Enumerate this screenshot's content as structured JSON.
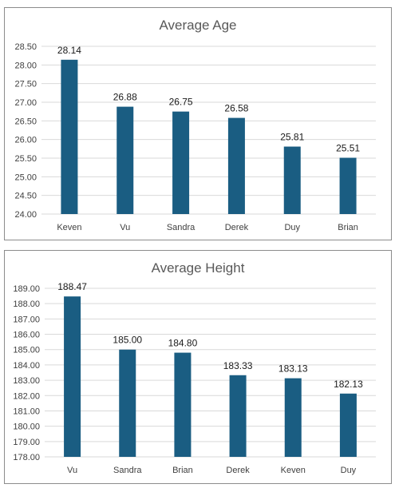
{
  "chart_data": [
    {
      "type": "bar",
      "title": "Average Age",
      "categories": [
        "Keven",
        "Vu",
        "Sandra",
        "Derek",
        "Duy",
        "Brian"
      ],
      "values": [
        28.14,
        26.88,
        26.75,
        26.58,
        25.81,
        25.51
      ],
      "value_labels": [
        "28.14",
        "26.88",
        "26.75",
        "26.58",
        "25.81",
        "25.51"
      ],
      "ylim": [
        24.0,
        28.5
      ],
      "yticks": [
        "24.00",
        "24.50",
        "25.00",
        "25.50",
        "26.00",
        "26.50",
        "27.00",
        "27.50",
        "28.00",
        "28.50"
      ],
      "xlabel": "",
      "ylabel": "",
      "grid": true,
      "legend": "none",
      "bar_color": "#1a5d82"
    },
    {
      "type": "bar",
      "title": "Average Height",
      "categories": [
        "Vu",
        "Sandra",
        "Brian",
        "Derek",
        "Keven",
        "Duy"
      ],
      "values": [
        188.47,
        185.0,
        184.8,
        183.33,
        183.13,
        182.13
      ],
      "value_labels": [
        "188.47",
        "185.00",
        "184.80",
        "183.33",
        "183.13",
        "182.13"
      ],
      "ylim": [
        178.0,
        189.0
      ],
      "yticks": [
        "178.00",
        "179.00",
        "180.00",
        "181.00",
        "182.00",
        "183.00",
        "184.00",
        "185.00",
        "186.00",
        "187.00",
        "188.00",
        "189.00"
      ],
      "xlabel": "",
      "ylabel": "",
      "grid": true,
      "legend": "none",
      "bar_color": "#1a5d82"
    }
  ]
}
